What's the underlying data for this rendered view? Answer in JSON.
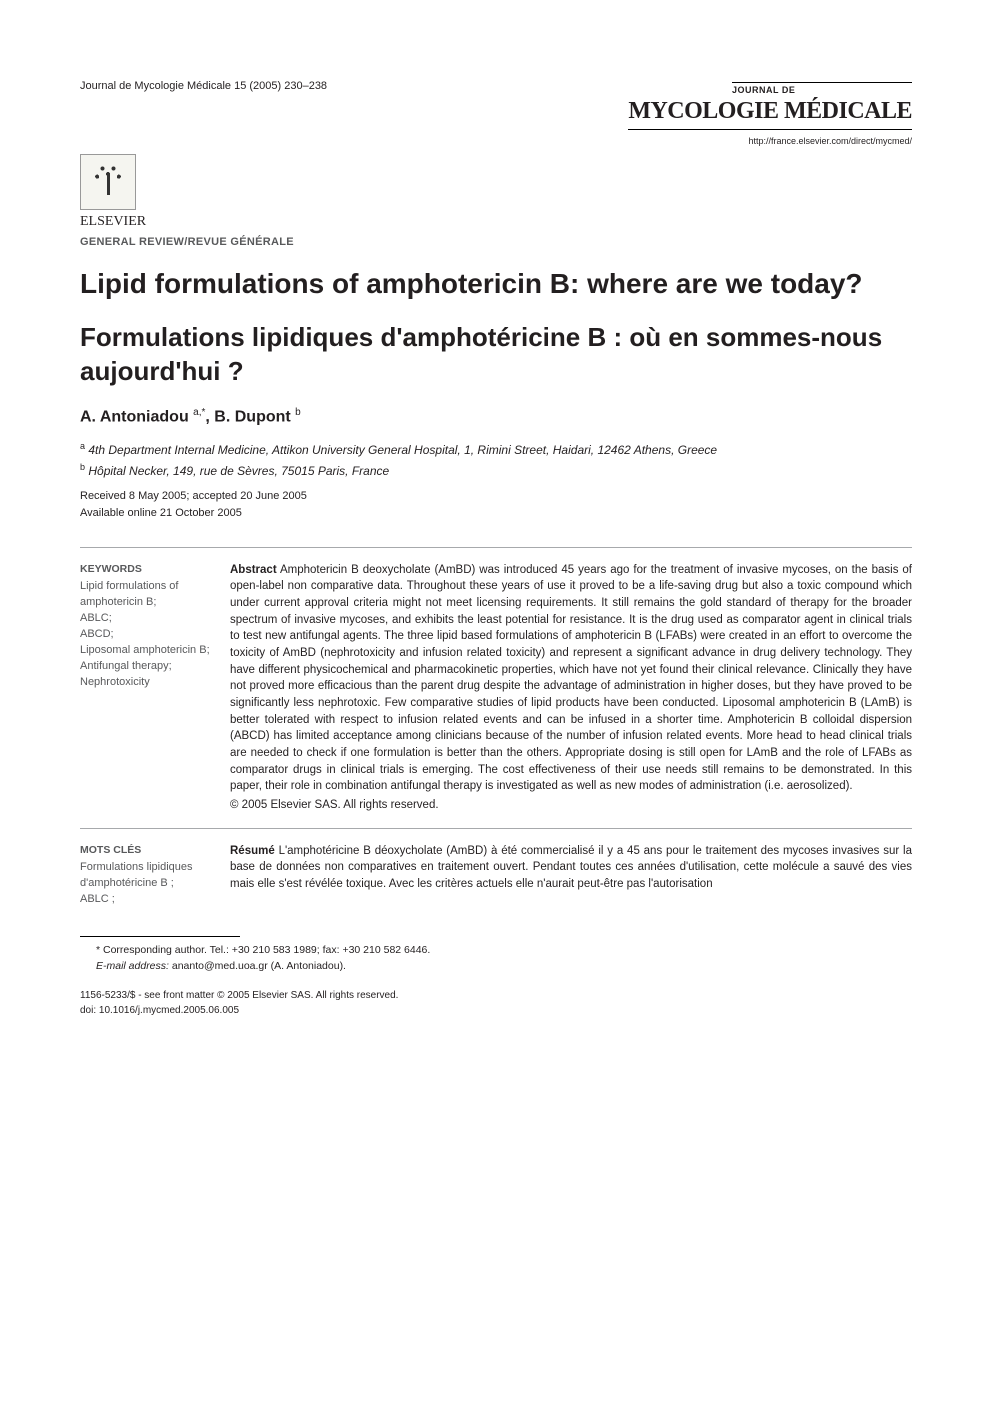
{
  "header": {
    "journal_ref": "Journal de Mycologie Médicale 15 (2005) 230–238",
    "elsevier": "ELSEVIER",
    "brand_label": "JOURNAL DE",
    "brand_name": "MYCOLOGIE MÉDICALE",
    "url": "http://france.elsevier.com/direct/mycmed/",
    "section_label": "GENERAL REVIEW/REVUE GÉNÉRALE"
  },
  "title_en": "Lipid formulations of amphotericin B: where are we today?",
  "title_fr": "Formulations lipidiques d'amphotéricine B : où en sommes-nous aujourd'hui ?",
  "authors_html": "A. Antoniadou ",
  "author_a_sup": "a,*",
  "author_sep": ", B. Dupont ",
  "author_b_sup": "b",
  "affil_a_sup": "a",
  "affil_a": " 4th Department Internal Medicine, Attikon University General Hospital, 1, Rimini Street, Haidari, 12462 Athens, Greece",
  "affil_b_sup": "b",
  "affil_b": " Hôpital Necker, 149, rue de Sèvres, 75015 Paris, France",
  "received": "Received 8 May 2005; accepted 20 June 2005",
  "available": "Available online 21 October 2005",
  "keywords": {
    "heading": "KEYWORDS",
    "items": "Lipid formulations of amphotericin B;\nABLC;\nABCD;\nLiposomal amphotericin B;\nAntifungal therapy;\nNephrotoxicity"
  },
  "abstract": {
    "label": "Abstract",
    "body": " Amphotericin B deoxycholate (AmBD) was introduced 45 years ago for the treatment of invasive mycoses, on the basis of open-label non comparative data. Throughout these years of use it proved to be a life-saving drug but also a toxic compound which under current approval criteria might not meet licensing requirements. It still remains the gold standard of therapy for the broader spectrum of invasive mycoses, and exhibits the least potential for resistance. It is the drug used as comparator agent in clinical trials to test new antifungal agents. The three lipid based formulations of amphotericin B (LFABs) were created in an effort to overcome the toxicity of AmBD (nephrotoxicity and infusion related toxicity) and represent a significant advance in drug delivery technology. They have different physicochemical and pharmacokinetic properties, which have not yet found their clinical relevance. Clinically they have not proved more efficacious than the parent drug despite the advantage of administration in higher doses, but they have proved to be significantly less nephrotoxic. Few comparative studies of lipid products have been conducted. Liposomal amphotericin B (LAmB) is better tolerated with respect to infusion related events and can be infused in a shorter time. Amphotericin B colloidal dispersion (ABCD) has limited acceptance among clinicians because of the number of infusion related events. More head to head clinical trials are needed to check if one formulation is better than the others. Appropriate dosing is still open for LAmB and the role of LFABs as comparator drugs in clinical trials is emerging. The cost effectiveness of their use needs still remains to be demonstrated. In this paper, their role in combination antifungal therapy is investigated as well as new modes of administration (i.e. aerosolized).",
    "copyright": "© 2005 Elsevier SAS. All rights reserved."
  },
  "motscles": {
    "heading": "MOTS CLÉS",
    "items": "Formulations lipidiques d'amphotéricine B ;\nABLC ;"
  },
  "resume": {
    "label": "Résumé",
    "body": " L'amphotéricine B déoxycholate (AmBD) à été commercialisé il y a 45 ans pour le traitement des mycoses invasives sur la base de données non comparatives en traitement ouvert. Pendant toutes ces années d'utilisation, cette molécule a sauvé des vies mais elle s'est révélée toxique. Avec les critères actuels elle n'aurait peut-être pas l'autorisation"
  },
  "footnote": {
    "corr": "* Corresponding author. Tel.: +30 210 583 1989; fax: +30 210 582 6446.",
    "email_label": "E-mail address:",
    "email": " ananto@med.uoa.gr (A. Antoniadou)."
  },
  "bottom": {
    "issn": "1156-5233/$ - see front matter © 2005 Elsevier SAS. All rights reserved.",
    "doi": "doi: 10.1016/j.mycmed.2005.06.005"
  }
}
